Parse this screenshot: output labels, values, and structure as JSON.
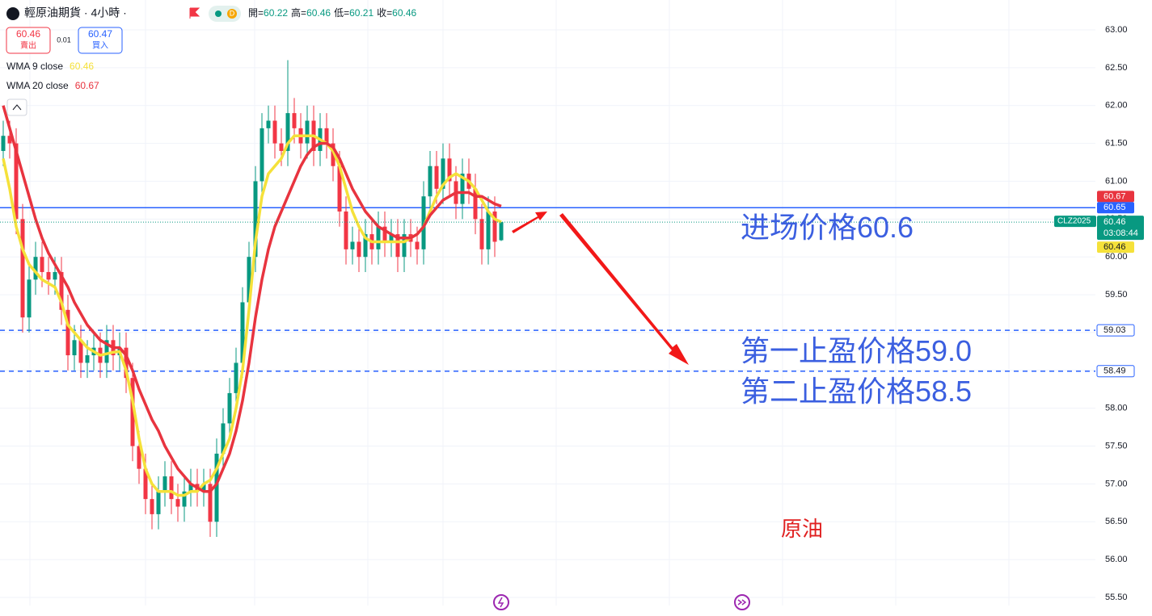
{
  "header": {
    "symbol": "輕原油期貨 · 4小時 ·",
    "badge": "D",
    "ohlc": [
      {
        "label": "開=",
        "value": 60.22
      },
      {
        "label": "高=",
        "value": 60.46
      },
      {
        "label": "低=",
        "value": 60.21
      },
      {
        "label": "收=",
        "value": 60.46
      }
    ]
  },
  "trade": {
    "sell_price": 60.46,
    "sell_label": "賣出",
    "spread": 0.01,
    "buy_price": 60.47,
    "buy_label": "買入"
  },
  "chart_data": {
    "type": "candlestick",
    "up_color": "#089981",
    "down_color": "#f23645",
    "open": [
      61.4,
      61.6,
      61.5,
      60.5,
      59.2,
      59.7,
      60.0,
      59.8,
      59.7,
      59.8,
      59.3,
      58.7,
      58.9,
      58.6,
      58.7,
      58.8,
      58.6,
      58.9,
      58.7,
      58.8,
      58.4,
      57.5,
      57.2,
      56.8,
      56.6,
      56.9,
      57.1,
      56.8,
      56.7,
      56.9,
      57.0,
      56.9,
      57.0,
      56.5,
      57.4,
      57.8,
      58.2,
      58.6,
      59.4,
      60.0,
      61.0,
      61.7,
      61.8,
      61.5,
      61.4,
      61.9,
      61.7,
      61.5,
      61.8,
      61.4,
      61.7,
      61.5,
      61.2,
      60.6,
      60.1,
      60.2,
      60.0,
      60.3,
      60.1,
      60.4,
      60.2,
      60.3,
      60.0,
      60.3,
      60.2,
      60.1,
      60.8,
      61.2,
      60.9,
      61.3,
      61.0,
      60.7,
      61.1,
      60.9,
      60.5,
      60.1,
      60.6,
      60.22
    ],
    "high": [
      61.8,
      61.8,
      61.7,
      60.7,
      59.9,
      60.2,
      60.2,
      60.0,
      60.0,
      60.0,
      59.5,
      59.1,
      59.1,
      58.9,
      59.0,
      59.0,
      59.1,
      59.1,
      59.0,
      59.0,
      58.6,
      57.7,
      57.4,
      57.0,
      57.1,
      57.3,
      57.3,
      57.0,
      57.1,
      57.2,
      57.2,
      57.2,
      57.2,
      57.6,
      58.0,
      58.4,
      58.8,
      59.6,
      60.2,
      61.2,
      61.9,
      62.0,
      62.0,
      61.7,
      62.6,
      62.1,
      61.9,
      62.0,
      62.0,
      61.9,
      61.9,
      61.7,
      61.4,
      60.8,
      60.4,
      60.4,
      60.5,
      60.5,
      60.6,
      60.6,
      60.5,
      60.5,
      60.5,
      60.5,
      60.4,
      61.0,
      61.4,
      61.4,
      61.5,
      61.5,
      61.2,
      61.3,
      61.3,
      61.1,
      60.7,
      60.8,
      60.8,
      60.46
    ],
    "low": [
      61.2,
      61.3,
      60.3,
      59.0,
      59.0,
      59.5,
      59.6,
      59.5,
      59.5,
      59.1,
      58.5,
      58.5,
      58.4,
      58.4,
      58.5,
      58.4,
      58.4,
      58.5,
      58.5,
      58.2,
      57.3,
      57.0,
      56.6,
      56.4,
      56.4,
      56.7,
      56.6,
      56.5,
      56.5,
      56.7,
      56.7,
      56.7,
      56.3,
      56.3,
      57.2,
      57.6,
      58.0,
      58.4,
      59.2,
      59.8,
      60.8,
      61.5,
      61.3,
      61.2,
      61.2,
      61.5,
      61.3,
      61.3,
      61.2,
      61.2,
      61.3,
      61.0,
      60.4,
      59.9,
      59.9,
      59.8,
      59.8,
      59.9,
      59.9,
      60.0,
      60.0,
      59.8,
      59.8,
      60.0,
      59.9,
      59.9,
      60.6,
      60.7,
      60.7,
      60.8,
      60.5,
      60.5,
      60.7,
      60.3,
      59.9,
      59.9,
      60.0,
      60.21
    ],
    "close": [
      61.6,
      61.5,
      60.5,
      59.2,
      59.7,
      60.0,
      59.8,
      59.7,
      59.8,
      59.3,
      58.7,
      58.9,
      58.6,
      58.7,
      58.8,
      58.6,
      58.9,
      58.7,
      58.8,
      58.4,
      57.5,
      57.2,
      56.8,
      56.6,
      56.9,
      57.1,
      56.8,
      56.7,
      56.9,
      57.0,
      56.9,
      57.0,
      56.5,
      57.4,
      57.8,
      58.2,
      58.6,
      59.4,
      60.0,
      61.0,
      61.7,
      61.8,
      61.5,
      61.4,
      61.9,
      61.7,
      61.5,
      61.8,
      61.4,
      61.7,
      61.5,
      61.2,
      60.6,
      60.1,
      60.2,
      60.0,
      60.3,
      60.1,
      60.4,
      60.2,
      60.3,
      60.0,
      60.3,
      60.2,
      60.1,
      60.8,
      61.2,
      60.9,
      61.3,
      61.0,
      60.7,
      61.1,
      60.9,
      60.5,
      60.1,
      60.6,
      60.2,
      60.46
    ],
    "series": [
      {
        "name": "WMA 9 close",
        "color": "#f5e13a",
        "legend_value": 60.46,
        "values": [
          61.3,
          60.9,
          60.4,
          60.1,
          59.9,
          59.8,
          59.7,
          59.65,
          59.6,
          59.4,
          59.1,
          59.0,
          58.9,
          58.8,
          58.75,
          58.7,
          58.72,
          58.74,
          58.75,
          58.5,
          58.1,
          57.6,
          57.2,
          57.0,
          56.9,
          56.9,
          56.9,
          56.85,
          56.85,
          56.9,
          56.9,
          57.0,
          57.05,
          57.2,
          57.4,
          57.6,
          58.0,
          58.5,
          59.3,
          60.2,
          60.8,
          61.1,
          61.2,
          61.3,
          61.5,
          61.6,
          61.6,
          61.6,
          61.6,
          61.55,
          61.5,
          61.4,
          61.2,
          60.9,
          60.6,
          60.4,
          60.25,
          60.2,
          60.2,
          60.2,
          60.2,
          60.2,
          60.2,
          60.25,
          60.3,
          60.4,
          60.6,
          60.8,
          60.95,
          61.05,
          61.1,
          61.05,
          61.0,
          60.9,
          60.75,
          60.6,
          60.5,
          60.46
        ]
      },
      {
        "name": "WMA 20 close",
        "color": "#e8343f",
        "legend_value": 60.67,
        "values": [
          62.0,
          61.7,
          61.4,
          61.1,
          60.8,
          60.5,
          60.25,
          60.05,
          59.9,
          59.75,
          59.6,
          59.4,
          59.25,
          59.1,
          59.0,
          58.9,
          58.85,
          58.8,
          58.8,
          58.7,
          58.5,
          58.25,
          58.05,
          57.85,
          57.7,
          57.5,
          57.35,
          57.2,
          57.1,
          57.0,
          56.95,
          56.9,
          56.9,
          57.0,
          57.2,
          57.4,
          57.7,
          58.1,
          58.6,
          59.2,
          59.7,
          60.1,
          60.4,
          60.6,
          60.8,
          61.0,
          61.2,
          61.35,
          61.45,
          61.5,
          61.5,
          61.45,
          61.3,
          61.1,
          60.9,
          60.75,
          60.6,
          60.5,
          60.4,
          60.35,
          60.3,
          60.25,
          60.25,
          60.25,
          60.3,
          60.4,
          60.55,
          60.65,
          60.75,
          60.8,
          60.85,
          60.85,
          60.85,
          60.8,
          60.8,
          60.75,
          60.7,
          60.67
        ]
      }
    ],
    "ylim": [
      55.5,
      63
    ],
    "yticks": [
      {
        "value": 55.5,
        "label": "55.50"
      },
      {
        "value": 56,
        "label": "56.00"
      },
      {
        "value": 56.5,
        "label": "56.50"
      },
      {
        "value": 57,
        "label": "57.00"
      },
      {
        "value": 57.5,
        "label": "57.50"
      },
      {
        "value": 58,
        "label": "58.00"
      },
      {
        "value": 58.5,
        "label": "58.50"
      },
      {
        "value": 59,
        "label": "59.00"
      },
      {
        "value": 59.5,
        "label": "59.50"
      },
      {
        "value": 60,
        "label": "60.00"
      },
      {
        "value": 60.5,
        "label": "60.50"
      },
      {
        "value": 61,
        "label": "61.00"
      },
      {
        "value": 61.5,
        "label": "61.50"
      },
      {
        "value": 62,
        "label": "62.00"
      },
      {
        "value": 62.5,
        "label": "62.50"
      },
      {
        "value": 63,
        "label": "63.00"
      }
    ],
    "grid": true,
    "levels": [
      {
        "value": 60.65,
        "color": "#2962ff",
        "style": "solid"
      },
      {
        "value": 59.03,
        "color": "#2962ff",
        "style": "dashed"
      },
      {
        "value": 58.49,
        "color": "#2962ff",
        "style": "dashed"
      }
    ],
    "last_price": {
      "value": 60.46,
      "symbol": "CLZ2025",
      "countdown": "03:08:44",
      "color": "#089981"
    },
    "annotations": [
      "进场价格60.6",
      "第一止盈价格59.0",
      "第二止盈价格58.5",
      "原油"
    ]
  }
}
